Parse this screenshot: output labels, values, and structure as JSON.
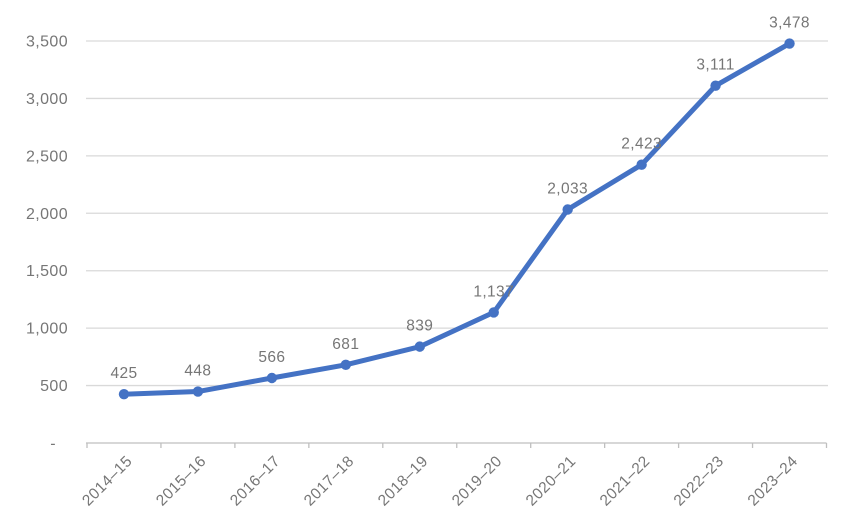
{
  "chart_data": {
    "type": "line",
    "title": "",
    "xlabel": "",
    "ylabel": "",
    "categories": [
      "2014–15",
      "2015–16",
      "2016–17",
      "2017–18",
      "2018–19",
      "2019–20",
      "2020–21",
      "2021–22",
      "2022–23",
      "2023–24"
    ],
    "values": [
      425,
      448,
      566,
      681,
      839,
      1137,
      2033,
      2423,
      3111,
      3478
    ],
    "data_labels": [
      "425",
      "448",
      "566",
      "681",
      "839",
      "1,137",
      "2,033",
      "2,423",
      "3,111",
      "3,478"
    ],
    "ylim": [
      0,
      3500
    ],
    "ytick_step": 500,
    "ytick_labels": [
      "-",
      "500",
      "1,000",
      "1,500",
      "2,000",
      "2,500",
      "3,000",
      "3,500"
    ],
    "grid": true,
    "legend": false,
    "marker": "circle",
    "colors": {
      "series": "#4472C4",
      "gridline": "#D9D9D9",
      "axis": "#BFBFBF",
      "text": "#767676",
      "background": "#FFFFFF"
    }
  }
}
